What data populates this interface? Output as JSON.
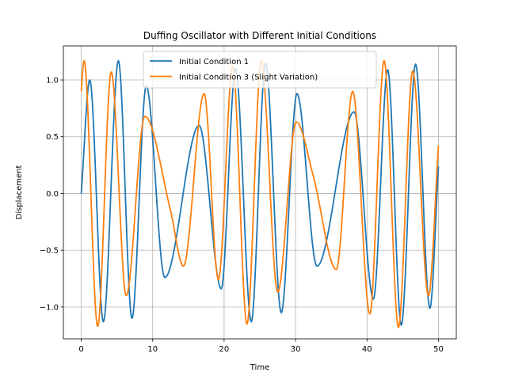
{
  "chart_data": {
    "type": "line",
    "title": "Duffing Oscillator with Different Initial Conditions",
    "xlabel": "Time",
    "ylabel": "Displacement",
    "xlim": [
      -2.5,
      52.5
    ],
    "ylim": [
      -1.28,
      1.3
    ],
    "xticks": [
      0,
      10,
      20,
      30,
      40,
      50
    ],
    "xtick_labels": [
      "0",
      "10",
      "20",
      "30",
      "40",
      "50"
    ],
    "yticks": [
      -1.0,
      -0.5,
      0.0,
      0.5,
      1.0
    ],
    "ytick_labels": [
      "−1.0",
      "−0.5",
      "0.0",
      "0.5",
      "1.0"
    ],
    "grid": true,
    "legend_position": "top-center",
    "series": [
      {
        "name": "Initial Condition 1",
        "color": "#1f77b4",
        "points": [
          [
            0,
            0.0
          ],
          [
            1.2,
            1.0
          ],
          [
            3.1,
            -1.13
          ],
          [
            5.2,
            1.17
          ],
          [
            7.1,
            -1.1
          ],
          [
            9.1,
            0.95
          ],
          [
            11.7,
            -0.74
          ],
          [
            16.5,
            0.6
          ],
          [
            19.6,
            -0.84
          ],
          [
            21.6,
            1.1
          ],
          [
            23.8,
            -1.13
          ],
          [
            25.8,
            1.15
          ],
          [
            28.0,
            -1.05
          ],
          [
            30.2,
            0.88
          ],
          [
            33.0,
            -0.64
          ],
          [
            38.2,
            0.72
          ],
          [
            40.9,
            -0.93
          ],
          [
            42.9,
            1.09
          ],
          [
            44.8,
            -1.16
          ],
          [
            46.8,
            1.14
          ],
          [
            48.8,
            -1.01
          ],
          [
            50.0,
            0.24
          ]
        ]
      },
      {
        "name": "Initial Condition 3 (Slight Variation)",
        "color": "#ff7f0e",
        "points": [
          [
            0,
            0.9
          ],
          [
            0.4,
            1.17
          ],
          [
            2.3,
            -1.17
          ],
          [
            4.2,
            1.07
          ],
          [
            6.3,
            -0.9
          ],
          [
            8.9,
            0.68
          ],
          [
            12.5,
            -0.15
          ],
          [
            14.3,
            -0.64
          ],
          [
            17.2,
            0.88
          ],
          [
            19.2,
            -0.76
          ],
          [
            21.2,
            1.12
          ],
          [
            23.2,
            -1.15
          ],
          [
            25.2,
            1.17
          ],
          [
            27.5,
            -0.87
          ],
          [
            30.1,
            0.63
          ],
          [
            32.5,
            0.15
          ],
          [
            35.7,
            -0.67
          ],
          [
            38.0,
            0.9
          ],
          [
            40.4,
            -1.06
          ],
          [
            42.4,
            1.17
          ],
          [
            44.4,
            -1.18
          ],
          [
            46.4,
            1.08
          ],
          [
            48.6,
            -0.9
          ],
          [
            50.0,
            0.42
          ]
        ]
      }
    ]
  }
}
